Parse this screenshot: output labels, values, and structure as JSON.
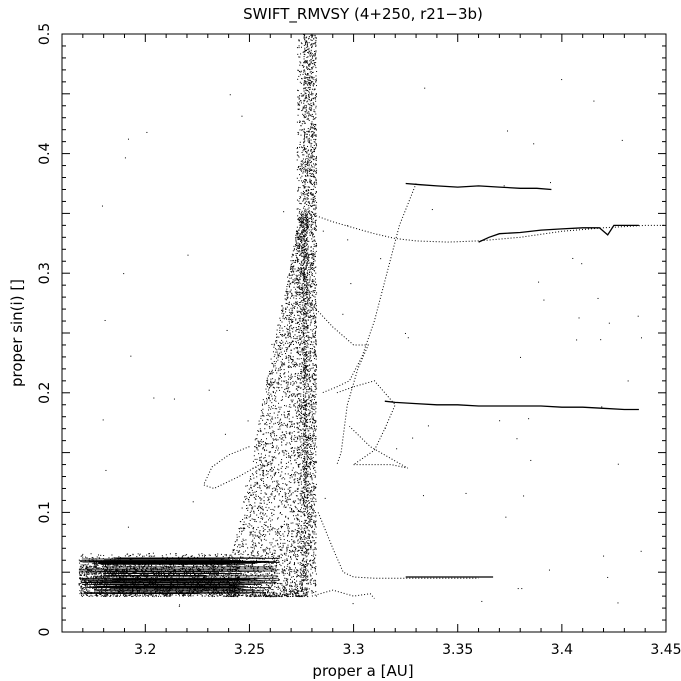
{
  "chart_data": {
    "type": "scatter",
    "title": "SWIFT_RMVSY (4+250, r21−3b)",
    "xlabel": "proper a [AU]",
    "ylabel": "proper sin(i) []",
    "xlim": [
      3.16,
      3.45
    ],
    "ylim": [
      0,
      0.5
    ],
    "xticks": [
      3.2,
      3.25,
      3.3,
      3.35,
      3.4,
      3.45
    ],
    "yticks": [
      0,
      0.1,
      0.2,
      0.3,
      0.4,
      0.5
    ],
    "xtick_labels": [
      "3.2",
      "3.25",
      "3.3",
      "3.35",
      "3.4",
      "3.45"
    ],
    "ytick_labels": [
      "0",
      "0.1",
      "0.2",
      "0.3",
      "0.4",
      "0.5"
    ],
    "grid": false,
    "legend": "none",
    "colors": {
      "points": "#000000",
      "frame": "#000000"
    },
    "features": {
      "resonance_a": 3.278,
      "dense_column": {
        "a_min": 3.268,
        "a_max": 3.282,
        "sini_min": 0.03,
        "sini_max": 0.5
      },
      "base_band": {
        "a_min": 3.168,
        "a_max": 3.245,
        "sini_min": 0.03,
        "sini_max": 0.066
      }
    },
    "tracks": [
      {
        "x": [
          3.325,
          3.332,
          3.34,
          3.35,
          3.36,
          3.37,
          3.38,
          3.388,
          3.395
        ],
        "y": [
          0.375,
          0.374,
          0.373,
          0.372,
          0.373,
          0.372,
          0.371,
          0.371,
          0.37
        ]
      },
      {
        "x": [
          3.36,
          3.365,
          3.37,
          3.38,
          3.39,
          3.4,
          3.41,
          3.418,
          3.422,
          3.425,
          3.43,
          3.437
        ],
        "y": [
          0.326,
          0.33,
          0.333,
          0.334,
          0.336,
          0.337,
          0.338,
          0.338,
          0.332,
          0.34,
          0.34,
          0.34
        ]
      },
      {
        "x": [
          3.315,
          3.32,
          3.33,
          3.34,
          3.35,
          3.36,
          3.37,
          3.38,
          3.39,
          3.4,
          3.41,
          3.42,
          3.43,
          3.437
        ],
        "y": [
          0.193,
          0.192,
          0.191,
          0.19,
          0.19,
          0.189,
          0.189,
          0.189,
          0.189,
          0.188,
          0.188,
          0.187,
          0.186,
          0.186
        ]
      },
      {
        "x": [
          3.325,
          3.335,
          3.345,
          3.355,
          3.367
        ],
        "y": [
          0.046,
          0.046,
          0.046,
          0.046,
          0.046
        ]
      }
    ],
    "dotted_paths": [
      {
        "x": [
          3.282,
          3.29,
          3.3,
          3.31,
          3.32,
          3.33,
          3.345,
          3.36,
          3.38,
          3.4,
          3.42,
          3.44,
          3.45
        ],
        "y": [
          0.348,
          0.343,
          0.338,
          0.333,
          0.329,
          0.327,
          0.326,
          0.327,
          0.33,
          0.335,
          0.338,
          0.34,
          0.34
        ]
      },
      {
        "x": [
          3.33,
          3.322,
          3.316,
          3.31,
          3.304,
          3.298,
          3.292,
          3.285
        ],
        "y": [
          0.375,
          0.34,
          0.3,
          0.26,
          0.23,
          0.21,
          0.205,
          0.2
        ]
      },
      {
        "x": [
          3.282,
          3.29,
          3.3,
          3.307,
          3.302,
          3.297,
          3.294,
          3.292
        ],
        "y": [
          0.27,
          0.255,
          0.24,
          0.24,
          0.22,
          0.19,
          0.15,
          0.14
        ]
      },
      {
        "x": [
          3.292,
          3.3,
          3.31,
          3.32,
          3.315,
          3.31,
          3.3
        ],
        "y": [
          0.2,
          0.205,
          0.21,
          0.19,
          0.17,
          0.152,
          0.14
        ]
      },
      {
        "x": [
          3.3,
          3.31,
          3.318,
          3.326,
          3.32,
          3.308,
          3.298
        ],
        "y": [
          0.14,
          0.14,
          0.14,
          0.137,
          0.143,
          0.155,
          0.172
        ]
      },
      {
        "x": [
          3.283,
          3.29,
          3.295,
          3.3,
          3.31,
          3.32,
          3.33,
          3.345,
          3.36
        ],
        "y": [
          0.1,
          0.07,
          0.05,
          0.046,
          0.045,
          0.045,
          0.045,
          0.045,
          0.045
        ]
      },
      {
        "x": [
          3.25,
          3.24,
          3.232,
          3.228,
          3.233,
          3.245,
          3.255
        ],
        "y": [
          0.155,
          0.148,
          0.138,
          0.123,
          0.12,
          0.13,
          0.14
        ]
      },
      {
        "x": [
          3.28,
          3.29,
          3.3,
          3.308,
          3.31
        ],
        "y": [
          0.03,
          0.035,
          0.03,
          0.032,
          0.028
        ]
      }
    ]
  }
}
